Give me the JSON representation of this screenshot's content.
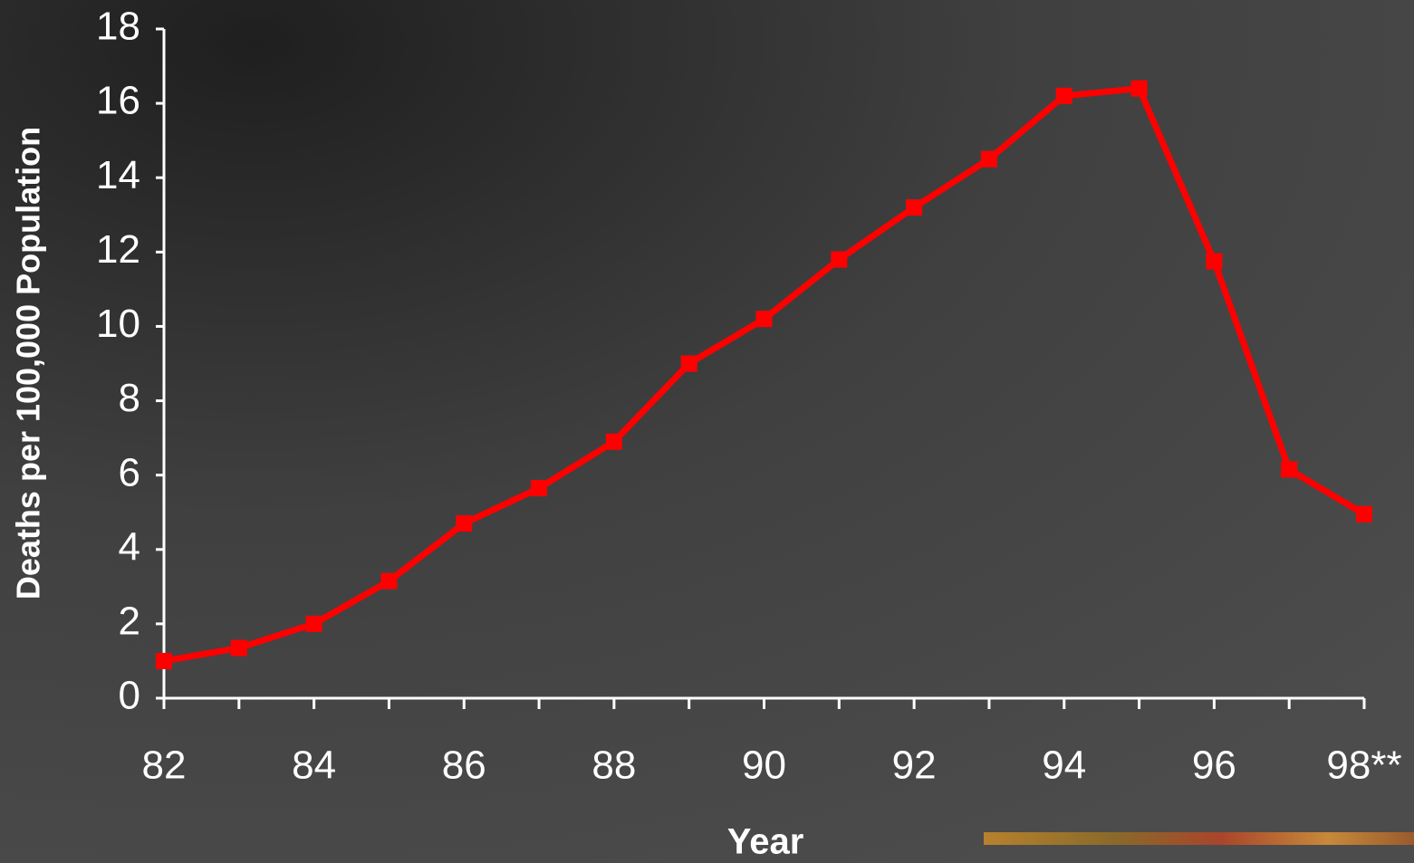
{
  "chart_data": {
    "type": "line",
    "x_label": "Year",
    "y_label": "Deaths per 100,000 Population",
    "categories": [
      "82",
      null,
      "84",
      null,
      "86",
      null,
      "88",
      null,
      "90",
      null,
      "92",
      null,
      "94",
      null,
      "96",
      null,
      "98**"
    ],
    "values": [
      1.0,
      1.35,
      2.0,
      3.15,
      4.7,
      5.65,
      6.9,
      9.0,
      10.2,
      11.8,
      13.2,
      14.5,
      16.2,
      16.4,
      11.75,
      6.15,
      4.95
    ],
    "color": "#ff0000",
    "ylim": [
      0,
      18
    ],
    "yticks": [
      0,
      2,
      4,
      6,
      8,
      10,
      12,
      14,
      16,
      18
    ]
  }
}
